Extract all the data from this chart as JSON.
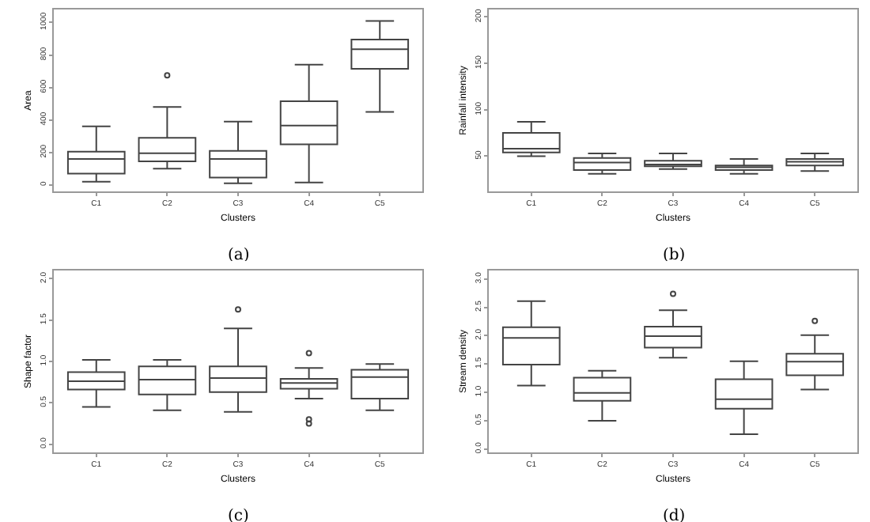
{
  "chart_data": [
    {
      "type": "box",
      "xlabel": "Clusters",
      "ylabel": "Area",
      "annotations": [
        "(a)"
      ],
      "categories": [
        "C1",
        "C2",
        "C3",
        "C4",
        "C5"
      ],
      "ylim": [
        -40,
        1080
      ],
      "yticks": [
        0,
        200,
        400,
        600,
        800,
        1000
      ],
      "grid": false,
      "color": "#444444",
      "boxes": [
        {
          "low": 20,
          "q1": 70,
          "median": 160,
          "q3": 205,
          "high": 360
        },
        {
          "low": 100,
          "q1": 145,
          "median": 195,
          "q3": 290,
          "high": 480,
          "outliers": [
            675
          ]
        },
        {
          "low": 10,
          "q1": 45,
          "median": 160,
          "q3": 210,
          "high": 390
        },
        {
          "low": 15,
          "q1": 250,
          "median": 365,
          "q3": 515,
          "high": 740
        },
        {
          "low": 450,
          "q1": 715,
          "median": 835,
          "q3": 895,
          "high": 1010
        }
      ]
    },
    {
      "type": "box",
      "xlabel": "Clusters",
      "ylabel": "Rainfall intensity",
      "annotations": [
        "(b)"
      ],
      "categories": [
        "C1",
        "C2",
        "C3",
        "C4",
        "C5"
      ],
      "ylim": [
        12,
        208
      ],
      "yticks": [
        50,
        100,
        150,
        200
      ],
      "grid": false,
      "color": "#444444",
      "boxes": [
        {
          "low": 50,
          "q1": 54,
          "median": 58,
          "q3": 75,
          "high": 87
        },
        {
          "low": 31,
          "q1": 35,
          "median": 43,
          "q3": 48,
          "high": 53
        },
        {
          "low": 36,
          "q1": 39,
          "median": 41,
          "q3": 45,
          "high": 53
        },
        {
          "low": 31,
          "q1": 35,
          "median": 38,
          "q3": 40,
          "high": 47
        },
        {
          "low": 34,
          "q1": 40,
          "median": 44,
          "q3": 47,
          "high": 53
        }
      ]
    },
    {
      "type": "box",
      "xlabel": "Clusters",
      "ylabel": "Shape factor",
      "annotations": [
        "(c)"
      ],
      "categories": [
        "C1",
        "C2",
        "C3",
        "C4",
        "C5"
      ],
      "ylim": [
        -0.1,
        2.1
      ],
      "yticks": [
        {
          "value": 0,
          "label": "0.0"
        },
        0.5,
        {
          "value": 1,
          "label": "1.0"
        },
        1.5,
        {
          "value": 2,
          "label": "2.0"
        }
      ],
      "grid": false,
      "color": "#444444",
      "boxes": [
        {
          "low": 0.45,
          "q1": 0.66,
          "median": 0.76,
          "q3": 0.87,
          "high": 1.02
        },
        {
          "low": 0.41,
          "q1": 0.6,
          "median": 0.78,
          "q3": 0.94,
          "high": 1.02
        },
        {
          "low": 0.39,
          "q1": 0.63,
          "median": 0.8,
          "q3": 0.94,
          "high": 1.4,
          "outliers": [
            1.63
          ]
        },
        {
          "low": 0.55,
          "q1": 0.67,
          "median": 0.74,
          "q3": 0.79,
          "high": 0.92,
          "outliers": [
            1.1,
            0.3,
            0.25
          ]
        },
        {
          "low": 0.41,
          "q1": 0.55,
          "median": 0.81,
          "q3": 0.9,
          "high": 0.97
        }
      ]
    },
    {
      "type": "box",
      "xlabel": "Clusters",
      "ylabel": "Stream density",
      "annotations": [
        "(d)"
      ],
      "categories": [
        "C1",
        "C2",
        "C3",
        "C4",
        "C5"
      ],
      "ylim": [
        -0.06,
        3.15
      ],
      "yticks": [
        {
          "value": 0,
          "label": "0.0"
        },
        0.5,
        {
          "value": 1,
          "label": "1.0"
        },
        1.5,
        {
          "value": 2,
          "label": "2.0"
        },
        2.5,
        {
          "value": 3,
          "label": "3.0"
        }
      ],
      "grid": false,
      "color": "#444444",
      "boxes": [
        {
          "low": 1.12,
          "q1": 1.49,
          "median": 1.96,
          "q3": 2.15,
          "high": 2.61
        },
        {
          "low": 0.5,
          "q1": 0.85,
          "median": 0.99,
          "q3": 1.26,
          "high": 1.38
        },
        {
          "low": 1.61,
          "q1": 1.79,
          "median": 1.99,
          "q3": 2.16,
          "high": 2.45,
          "outliers": [
            2.74
          ]
        },
        {
          "low": 0.26,
          "q1": 0.71,
          "median": 0.88,
          "q3": 1.23,
          "high": 1.55
        },
        {
          "low": 1.05,
          "q1": 1.3,
          "median": 1.54,
          "q3": 1.68,
          "high": 2.01,
          "outliers": [
            2.26
          ]
        }
      ]
    }
  ]
}
